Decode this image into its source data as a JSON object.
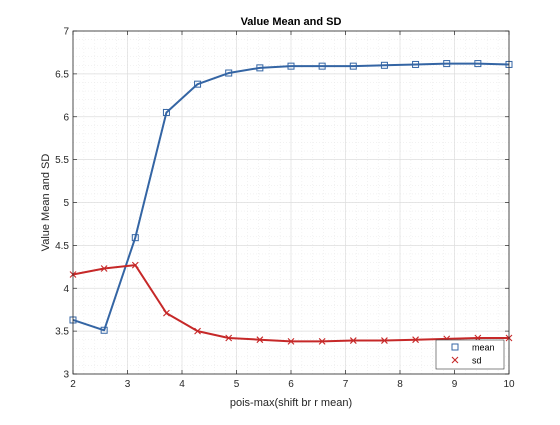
{
  "chart_data": {
    "type": "line",
    "title": "Value Mean and SD",
    "xlabel": "pois-max(shift br r mean)",
    "ylabel": "Value Mean and SD",
    "xlim": [
      2,
      10
    ],
    "ylim": [
      3,
      7
    ],
    "xticks": [
      "2",
      "3",
      "4",
      "5",
      "6",
      "7",
      "8",
      "9",
      "10"
    ],
    "yticks": [
      "3",
      "3.5",
      "4",
      "4.5",
      "5",
      "5.5",
      "6",
      "6.5",
      "7"
    ],
    "grid": true,
    "minor_grid": true,
    "legend_position": "bottom-right",
    "x": [
      2.0,
      2.5714,
      3.1429,
      3.7143,
      4.2857,
      4.8571,
      5.4286,
      6.0,
      6.5714,
      7.1429,
      7.7143,
      8.2857,
      8.8571,
      9.4286,
      10.0
    ],
    "series": [
      {
        "name": "mean",
        "color": "#3465a4",
        "marker": "square",
        "values": [
          3.63,
          3.51,
          4.59,
          6.05,
          6.38,
          6.51,
          6.57,
          6.59,
          6.59,
          6.59,
          6.6,
          6.61,
          6.62,
          6.62,
          6.61
        ]
      },
      {
        "name": "sd",
        "color": "#c62828",
        "marker": "x",
        "values": [
          4.16,
          4.23,
          4.27,
          3.71,
          3.5,
          3.42,
          3.4,
          3.38,
          3.38,
          3.39,
          3.39,
          3.4,
          3.41,
          3.42,
          3.42
        ]
      }
    ]
  }
}
